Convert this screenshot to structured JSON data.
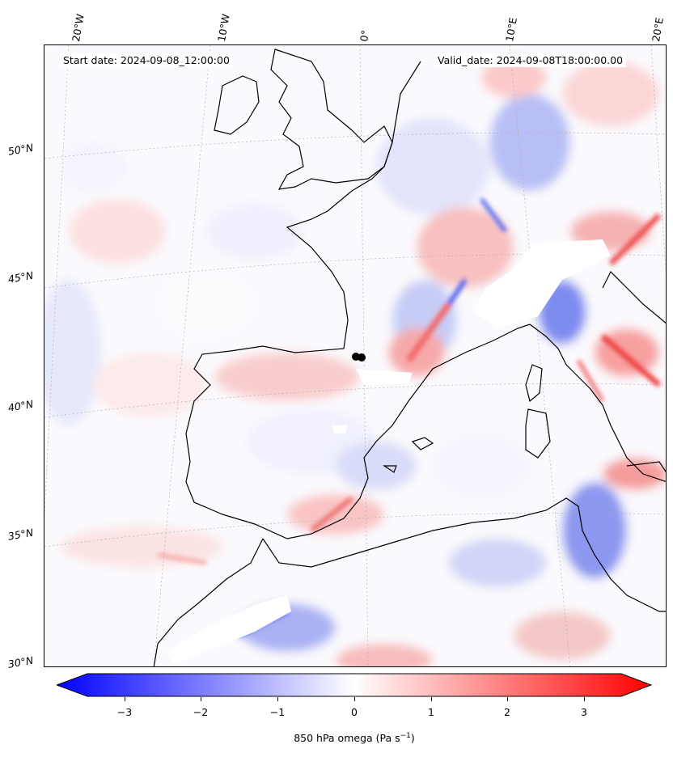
{
  "header": {
    "start_date": "Start date: 2024-09-08_12:00:00",
    "valid_date": "Valid_date: 2024-09-08T18:00:00.00"
  },
  "map": {
    "lon_labels": [
      "20°W",
      "10°W",
      "0°",
      "10°E",
      "20°E"
    ],
    "lat_labels": [
      "50°N",
      "45°N",
      "40°N",
      "35°N",
      "30°N"
    ],
    "coastline_color": "#000000",
    "field_colors": {
      "negative": "#0000ff",
      "zero": "#ffffff",
      "positive": "#ff0000"
    }
  },
  "colorbar": {
    "ticks": [
      "−3",
      "−2",
      "−1",
      "0",
      "1",
      "2",
      "3"
    ],
    "label_main": "850 hPa omega (Pa s",
    "label_sup": "−1",
    "label_end": ")",
    "range": [
      -3.7,
      3.7
    ],
    "colormap": "bwr",
    "extend": "both"
  }
}
